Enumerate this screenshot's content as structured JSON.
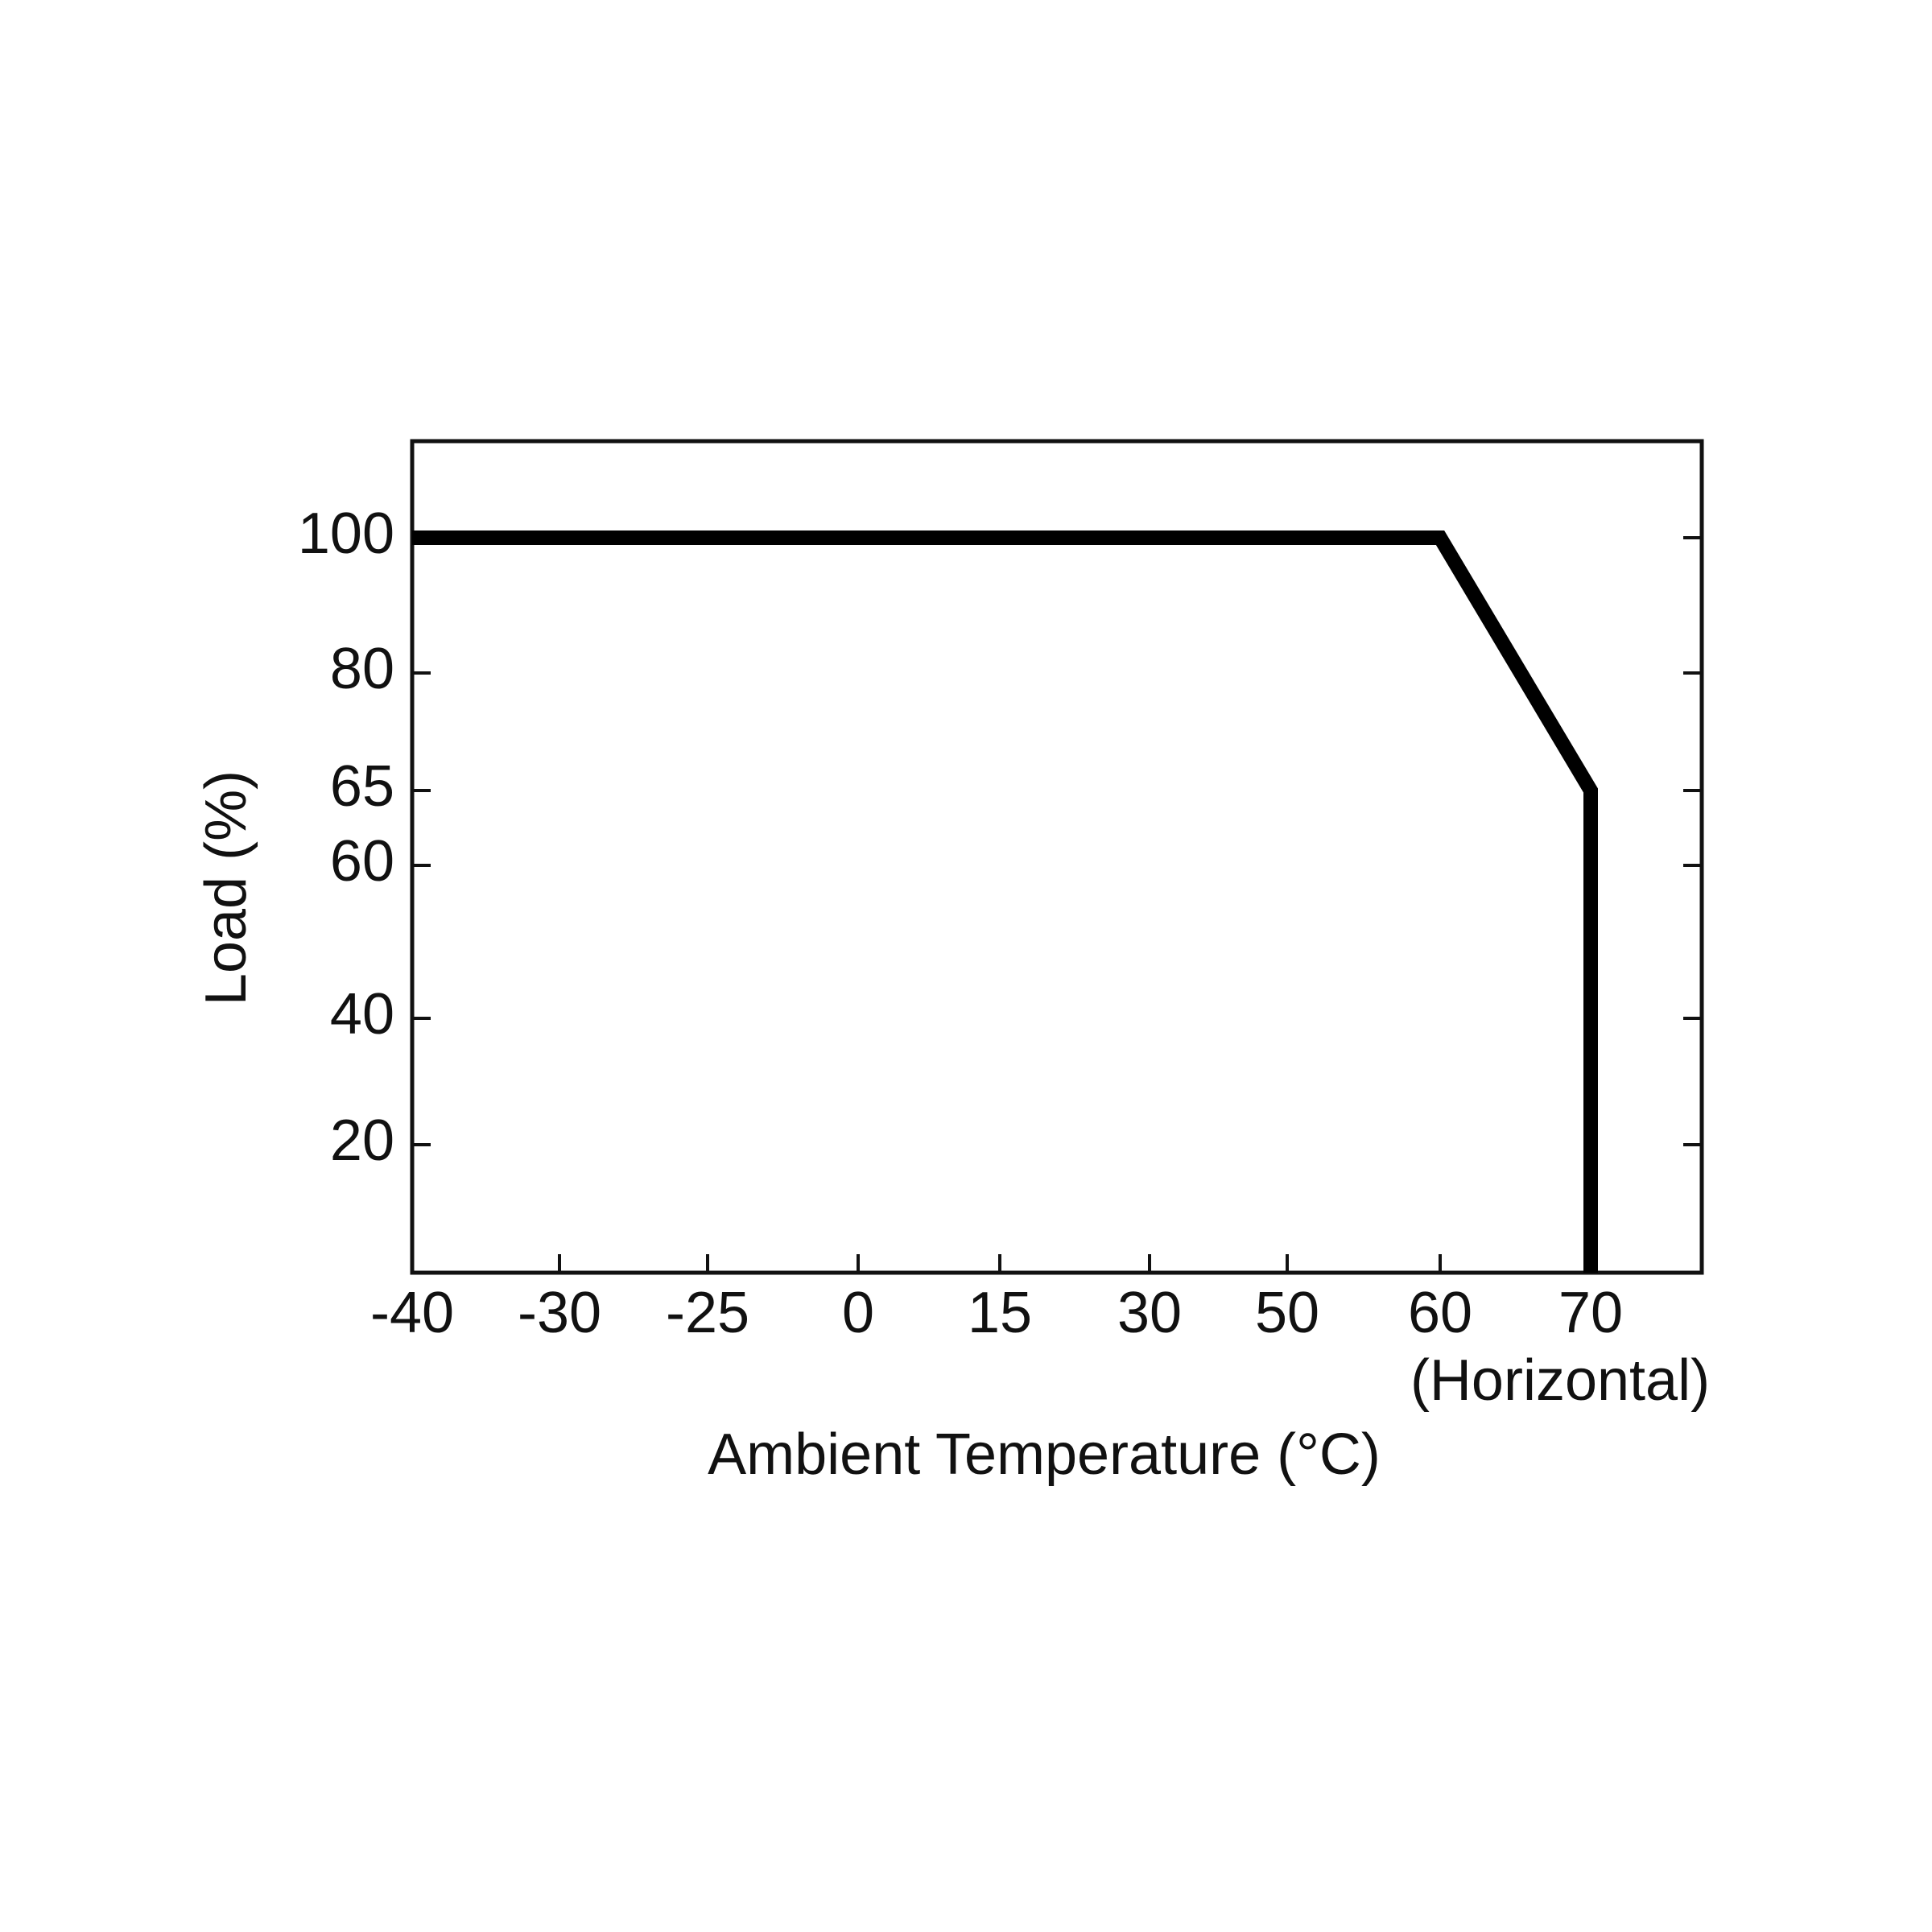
{
  "chart_data": {
    "type": "line",
    "x_label": "Ambient Temperature (°C)",
    "y_label": "Load (%)",
    "annotation": "(Horizontal)",
    "series": [
      {
        "name": "Load",
        "color": "#000000",
        "x": [
          -40,
          60,
          70,
          70
        ],
        "values": [
          100,
          100,
          65,
          0
        ]
      }
    ],
    "xlim": [
      -40,
      77
    ],
    "xticks": [
      -40,
      -30,
      -25,
      0,
      15,
      30,
      50,
      60,
      70
    ],
    "ylim": [
      0,
      114
    ],
    "yticks": [
      20,
      40,
      60,
      65,
      80,
      100
    ]
  }
}
